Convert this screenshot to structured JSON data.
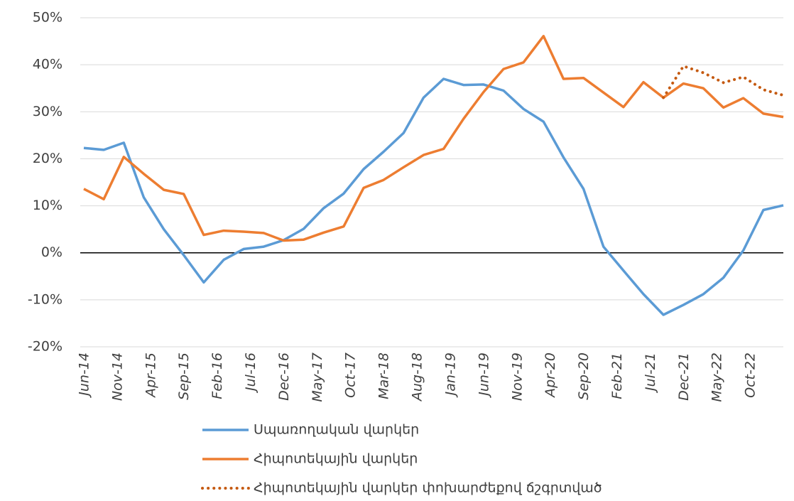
{
  "chart_data": {
    "type": "line",
    "x": [
      "2014-06",
      "2014-09",
      "2014-12",
      "2015-03",
      "2015-06",
      "2015-09",
      "2015-12",
      "2016-03",
      "2016-06",
      "2016-09",
      "2016-12",
      "2017-03",
      "2017-06",
      "2017-09",
      "2017-12",
      "2018-03",
      "2018-06",
      "2018-09",
      "2018-12",
      "2019-03",
      "2019-06",
      "2019-09",
      "2019-12",
      "2020-03",
      "2020-06",
      "2020-09",
      "2020-12",
      "2021-03",
      "2021-06",
      "2021-09",
      "2021-12",
      "2022-03",
      "2022-06",
      "2022-09",
      "2022-12",
      "2023-03"
    ],
    "series": [
      {
        "name": "Սպառողական վարկեր",
        "color": "#5b9bd5",
        "style": "solid",
        "values": [
          22.3,
          21.9,
          23.4,
          11.8,
          5,
          -0.5,
          -6.3,
          -1.5,
          0.8,
          1.3,
          2.7,
          5.1,
          9.5,
          12.6,
          17.8,
          21.5,
          25.5,
          33,
          37,
          35.7,
          35.8,
          34.5,
          30.6,
          27.9,
          20.3,
          13.6,
          1.3,
          -3.8,
          -8.8,
          -13.2,
          -11.1,
          -8.8,
          -5.3,
          0.5,
          9.1,
          10.1
        ]
      },
      {
        "name": "Հիպոտեկային վարկեր",
        "color": "#ed7d31",
        "style": "solid",
        "values": [
          13.6,
          11.4,
          20.4,
          16.8,
          13.4,
          12.5,
          3.8,
          4.7,
          4.5,
          4.2,
          2.6,
          2.8,
          4.3,
          5.6,
          13.8,
          15.5,
          18.2,
          20.8,
          22.1,
          28.5,
          34.2,
          39.1,
          40.5,
          46.1,
          37,
          37.2,
          34.1,
          31,
          36.3,
          33,
          36,
          35,
          30.9,
          32.9,
          29.6,
          28.9
        ]
      },
      {
        "name": "Հիպոտեկային վարկեր փոխարժեքով ճշգրտված",
        "color": "#c55a11",
        "style": "dotted",
        "values": [
          null,
          null,
          null,
          null,
          null,
          null,
          null,
          null,
          null,
          null,
          null,
          null,
          null,
          null,
          null,
          null,
          null,
          null,
          null,
          null,
          null,
          null,
          null,
          null,
          null,
          null,
          null,
          null,
          null,
          33,
          39.7,
          38.3,
          36.2,
          37.4,
          34.7,
          33.5
        ]
      }
    ],
    "xlim": [
      "2014-06",
      "2023-03"
    ],
    "xticks": [
      {
        "value": "2014-06",
        "label": "Jun-14"
      },
      {
        "value": "2014-11",
        "label": "Nov-14"
      },
      {
        "value": "2015-04",
        "label": "Apr-15"
      },
      {
        "value": "2015-09",
        "label": "Sep-15"
      },
      {
        "value": "2016-02",
        "label": "Feb-16"
      },
      {
        "value": "2016-07",
        "label": "Jul-16"
      },
      {
        "value": "2016-12",
        "label": "Dec-16"
      },
      {
        "value": "2017-05",
        "label": "May-17"
      },
      {
        "value": "2017-10",
        "label": "Oct-17"
      },
      {
        "value": "2018-03",
        "label": "Mar-18"
      },
      {
        "value": "2018-08",
        "label": "Aug-18"
      },
      {
        "value": "2019-01",
        "label": "Jan-19"
      },
      {
        "value": "2019-06",
        "label": "Jun-19"
      },
      {
        "value": "2019-11",
        "label": "Nov-19"
      },
      {
        "value": "2020-04",
        "label": "Apr-20"
      },
      {
        "value": "2020-09",
        "label": "Sep-20"
      },
      {
        "value": "2021-02",
        "label": "Feb-21"
      },
      {
        "value": "2021-07",
        "label": "Jul-21"
      },
      {
        "value": "2021-12",
        "label": "Dec-21"
      },
      {
        "value": "2022-05",
        "label": "May-22"
      },
      {
        "value": "2022-10",
        "label": "Oct-22"
      }
    ],
    "ylim": [
      -20,
      50
    ],
    "yticks": [
      {
        "value": -20,
        "label": "-20%"
      },
      {
        "value": -10,
        "label": "-10%"
      },
      {
        "value": 0,
        "label": "0%"
      },
      {
        "value": 10,
        "label": "10%"
      },
      {
        "value": 20,
        "label": "20%"
      },
      {
        "value": 30,
        "label": "30%"
      },
      {
        "value": 40,
        "label": "40%"
      },
      {
        "value": 50,
        "label": "50%"
      }
    ],
    "grid": true,
    "legend": "bottom"
  }
}
